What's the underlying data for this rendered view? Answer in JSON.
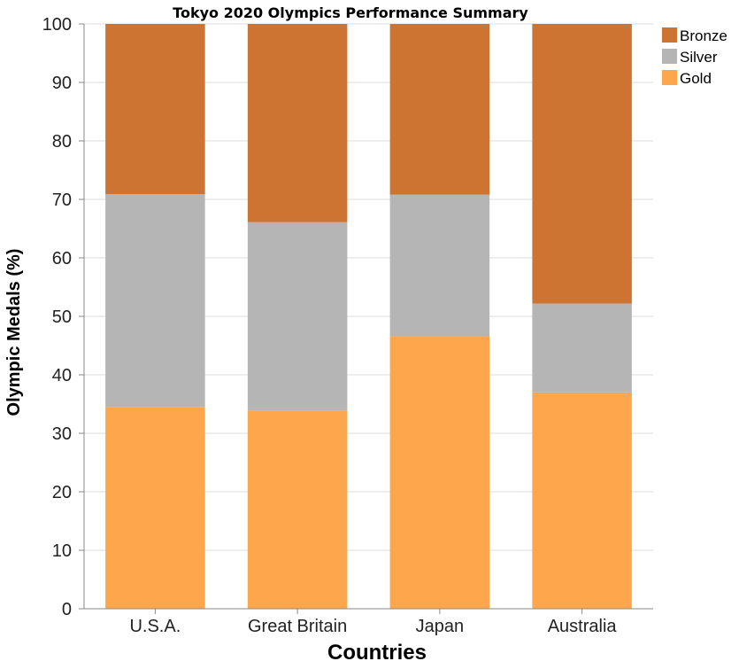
{
  "chart_data": {
    "type": "bar",
    "stacked": true,
    "title": "Tokyo 2020 Olympics Performance Summary",
    "xlabel": "Countries",
    "ylabel": "Olympic Medals (%)",
    "categories": [
      "U.S.A.",
      "Great Britain",
      "Japan",
      "Australia"
    ],
    "ylim": [
      0,
      100
    ],
    "yticks": [
      0,
      10,
      20,
      30,
      40,
      50,
      60,
      70,
      80,
      90,
      100
    ],
    "grid": true,
    "legend_position": "top-right",
    "series": [
      {
        "name": "Gold",
        "color": "#FDA64C",
        "values": [
          34.5,
          33.9,
          46.6,
          37.0
        ]
      },
      {
        "name": "Silver",
        "color": "#B5B5B5",
        "values": [
          36.4,
          32.2,
          24.2,
          15.2
        ]
      },
      {
        "name": "Bronze",
        "color": "#CE7433",
        "values": [
          29.1,
          33.9,
          29.2,
          47.8
        ]
      }
    ],
    "legend_order": [
      "Bronze",
      "Silver",
      "Gold"
    ]
  }
}
